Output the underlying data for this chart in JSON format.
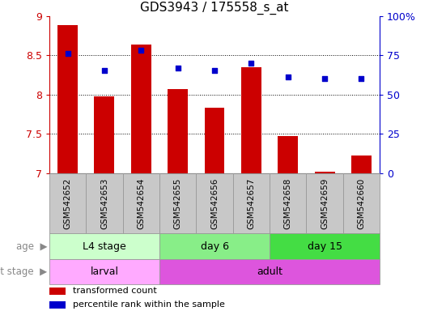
{
  "title": "GDS3943 / 175558_s_at",
  "samples": [
    "GSM542652",
    "GSM542653",
    "GSM542654",
    "GSM542655",
    "GSM542656",
    "GSM542657",
    "GSM542658",
    "GSM542659",
    "GSM542660"
  ],
  "transformed_count": [
    8.88,
    7.97,
    8.63,
    8.07,
    7.83,
    8.35,
    7.47,
    7.02,
    7.22
  ],
  "percentile_rank": [
    76,
    65,
    78,
    67,
    65,
    70,
    61,
    60,
    60
  ],
  "ylim": [
    7.0,
    9.0
  ],
  "yticks": [
    7.0,
    7.5,
    8.0,
    8.5,
    9.0
  ],
  "right_yticks": [
    0,
    25,
    50,
    75,
    100
  ],
  "right_ylim": [
    0,
    100
  ],
  "bar_color": "#cc0000",
  "dot_color": "#0000cc",
  "age_groups": [
    {
      "label": "L4 stage",
      "start": 0,
      "end": 3,
      "color": "#ccffcc"
    },
    {
      "label": "day 6",
      "start": 3,
      "end": 6,
      "color": "#88ee88"
    },
    {
      "label": "day 15",
      "start": 6,
      "end": 9,
      "color": "#44dd44"
    }
  ],
  "dev_groups": [
    {
      "label": "larval",
      "start": 0,
      "end": 3,
      "color": "#ffaaff"
    },
    {
      "label": "adult",
      "start": 3,
      "end": 9,
      "color": "#dd55dd"
    }
  ],
  "tick_label_color": "#cc0000",
  "right_tick_color": "#0000cc",
  "sample_bg_color": "#c8c8c8",
  "sample_border_color": "#999999",
  "label_color": "#888888",
  "arrow_color": "#888888"
}
